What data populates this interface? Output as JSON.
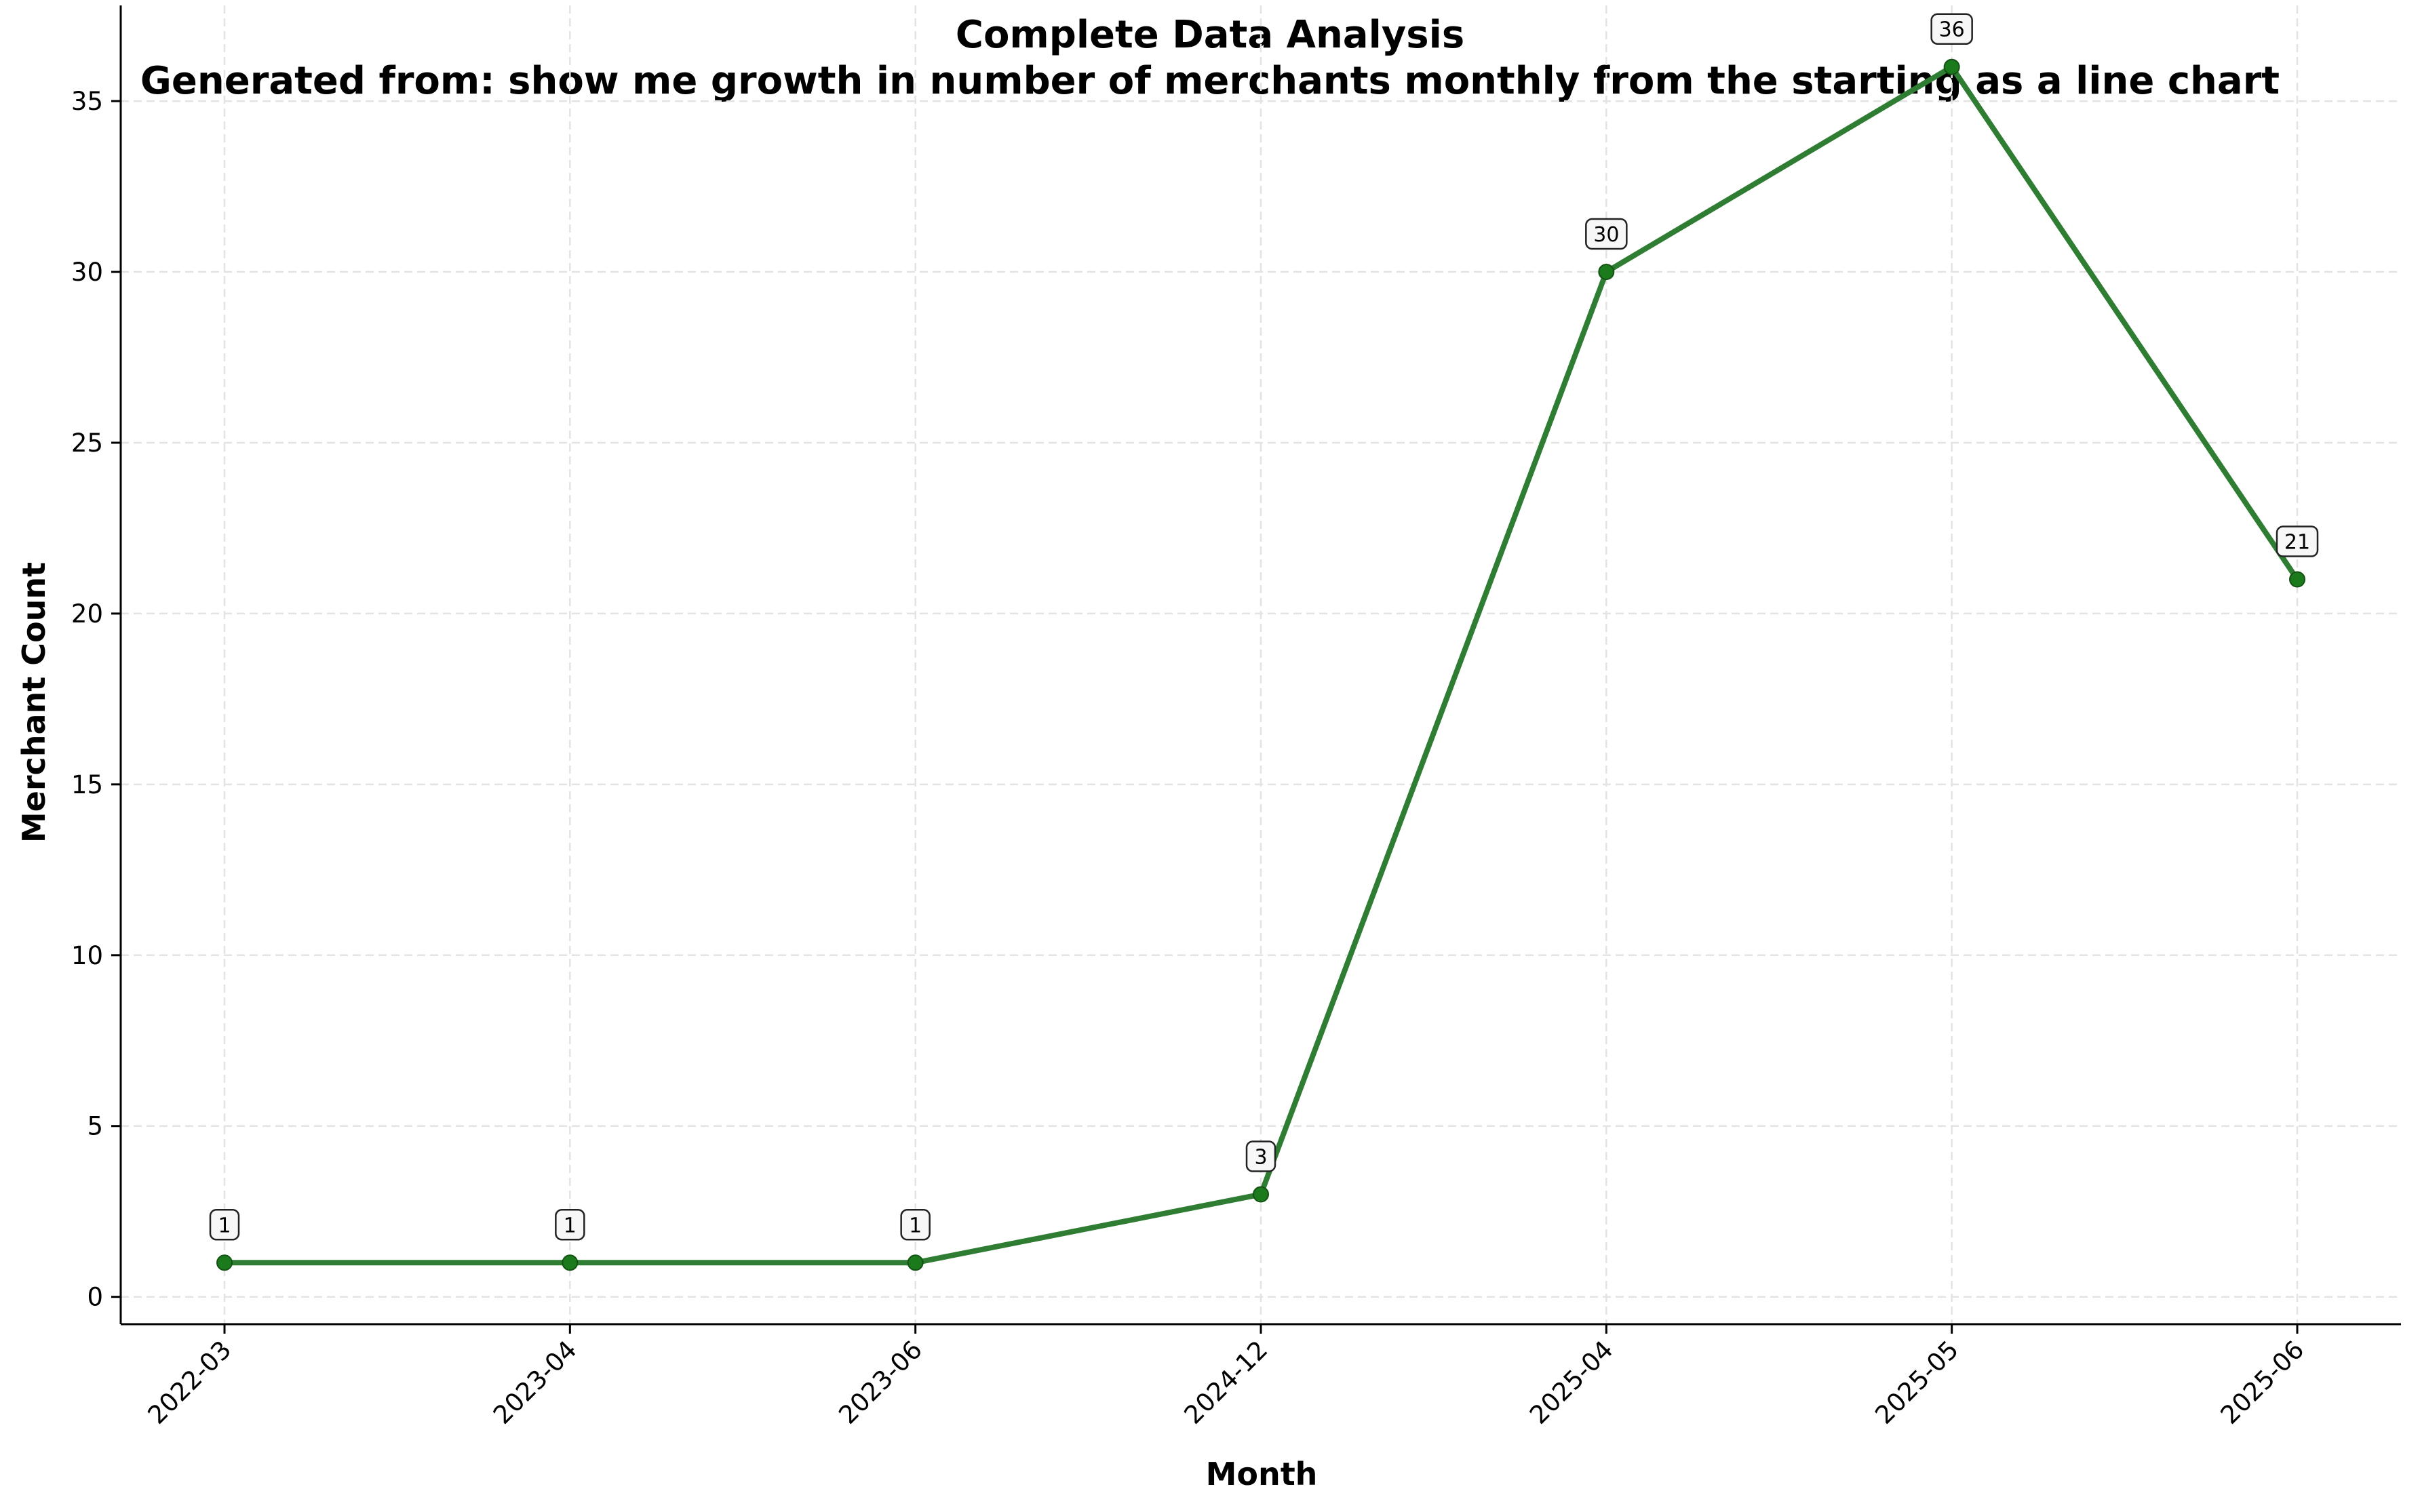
{
  "chart_data": {
    "type": "line",
    "title": "Complete Data Analysis",
    "subtitle": "Generated from: show me growth in number of merchants monthly from the starting as a line chart",
    "xlabel": "Month",
    "ylabel": "Merchant Count",
    "categories": [
      "2022-03",
      "2023-04",
      "2023-06",
      "2024-12",
      "2025-04",
      "2025-05",
      "2025-06"
    ],
    "series": [
      {
        "values": [
          1,
          1,
          1,
          3,
          30,
          36,
          21
        ],
        "color": "#2e7d32",
        "marker_color": "#1b7a1b"
      }
    ],
    "data_labels": [
      "1",
      "1",
      "1",
      "3",
      "30",
      "36",
      "21"
    ],
    "yticks": [
      0,
      5,
      10,
      15,
      20,
      25,
      30,
      35
    ],
    "ylim": [
      -0.8,
      37.8
    ],
    "grid": true,
    "legend": "none"
  }
}
